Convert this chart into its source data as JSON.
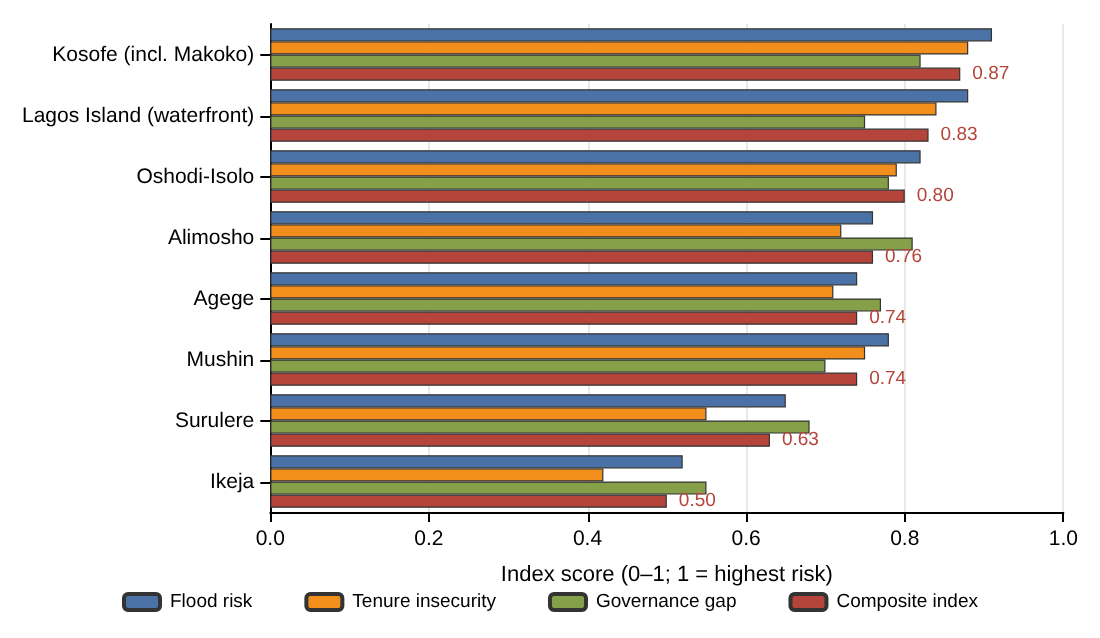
{
  "chart_data": {
    "type": "bar",
    "orientation": "horizontal",
    "xlabel": "Index score (0–1; 1 = highest risk)",
    "categories": [
      "Kosofe (incl. Makoko)",
      "Lagos Island (waterfront)",
      "Oshodi-Isolo",
      "Alimosho",
      "Agege",
      "Mushin",
      "Surulere",
      "Ikeja"
    ],
    "series": [
      {
        "name": "Flood risk",
        "color": "#4a72a6",
        "values": [
          0.91,
          0.88,
          0.82,
          0.76,
          0.74,
          0.78,
          0.65,
          0.52
        ]
      },
      {
        "name": "Tenure insecurity",
        "color": "#f28e1c",
        "values": [
          0.88,
          0.84,
          0.79,
          0.72,
          0.71,
          0.75,
          0.55,
          0.42
        ]
      },
      {
        "name": "Governance gap",
        "color": "#86a04a",
        "values": [
          0.82,
          0.75,
          0.78,
          0.81,
          0.77,
          0.7,
          0.68,
          0.55
        ]
      },
      {
        "name": "Composite index",
        "color": "#b5443a",
        "values": [
          0.87,
          0.83,
          0.8,
          0.76,
          0.74,
          0.74,
          0.63,
          0.5
        ],
        "value_labels": [
          "0.87",
          "0.83",
          "0.80",
          "0.76",
          "0.74",
          "0.74",
          "0.63",
          "0.50"
        ]
      }
    ],
    "xlim": [
      0,
      1
    ],
    "xticks": [
      {
        "value": 0,
        "label": "0.0"
      },
      {
        "value": 0.2,
        "label": "0.2"
      },
      {
        "value": 0.4,
        "label": "0.4"
      },
      {
        "value": 0.6,
        "label": "0.6"
      },
      {
        "value": 0.8,
        "label": "0.8"
      },
      {
        "value": 1,
        "label": "1.0"
      }
    ],
    "grid": "x",
    "legend": "bottom"
  }
}
